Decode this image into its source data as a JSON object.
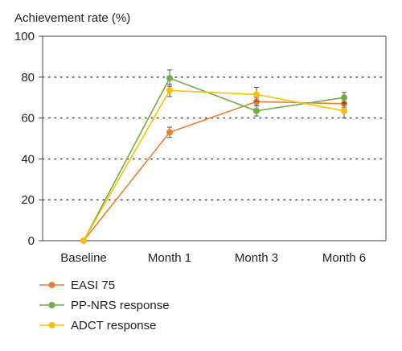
{
  "chart_data": {
    "type": "line",
    "title": "",
    "ylabel": "Achievement rate (%)",
    "xlabel": "",
    "categories": [
      "Baseline",
      "Month 1",
      "Month 3",
      "Month 6"
    ],
    "ylim": [
      0,
      100
    ],
    "yticks": [
      0,
      20,
      40,
      60,
      80,
      100
    ],
    "grid": "horizontal dotted",
    "legend": "bottom-left",
    "series": [
      {
        "name": "EASI 75",
        "color": "#ED7D31",
        "values": [
          0,
          53,
          68,
          67
        ],
        "errors": [
          0,
          2.5,
          2,
          2
        ]
      },
      {
        "name": "PP-NRS response",
        "color": "#70AD47",
        "values": [
          0,
          79.5,
          63.5,
          70
        ],
        "errors": [
          0,
          4,
          2.5,
          2.5
        ]
      },
      {
        "name": "ADCT response",
        "color": "#FFC000",
        "values": [
          0,
          73.5,
          71.5,
          63.5
        ],
        "errors": [
          0,
          3,
          3.5,
          3.5
        ]
      }
    ]
  }
}
